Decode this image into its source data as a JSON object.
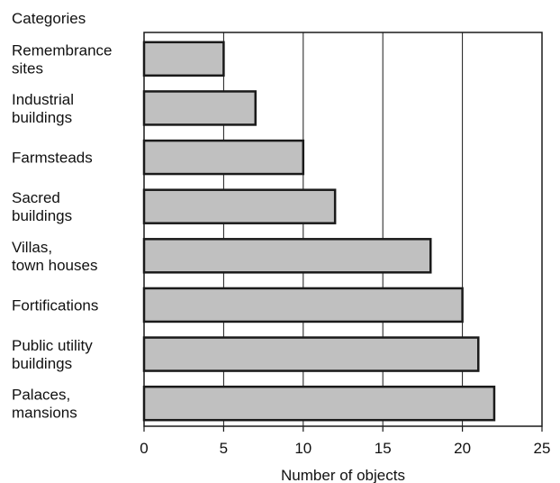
{
  "chart_data": {
    "type": "bar",
    "orientation": "horizontal",
    "title": "Categories",
    "xlabel": "Number of objects",
    "ylabel": "",
    "categories": [
      [
        "Remembrance",
        "sites"
      ],
      [
        "Industrial",
        "buildings"
      ],
      [
        "Farmsteads"
      ],
      [
        "Sacred",
        "buildings"
      ],
      [
        "Villas,",
        "town houses"
      ],
      [
        "Fortifications"
      ],
      [
        "Public utility",
        "buildings"
      ],
      [
        "Palaces,",
        "mansions"
      ]
    ],
    "values": [
      5,
      7,
      10,
      12,
      18,
      20,
      21,
      22
    ],
    "xlim": [
      0,
      25
    ],
    "xticks": [
      "0",
      "5",
      "10",
      "15",
      "20",
      "25"
    ],
    "grid": "vertical",
    "legend": "none",
    "colors": {
      "bar_fill": "#c0c0c0",
      "bar_stroke": "#1a1a1a",
      "frame": "#1a1a1a",
      "grid": "#1a1a1a"
    }
  }
}
